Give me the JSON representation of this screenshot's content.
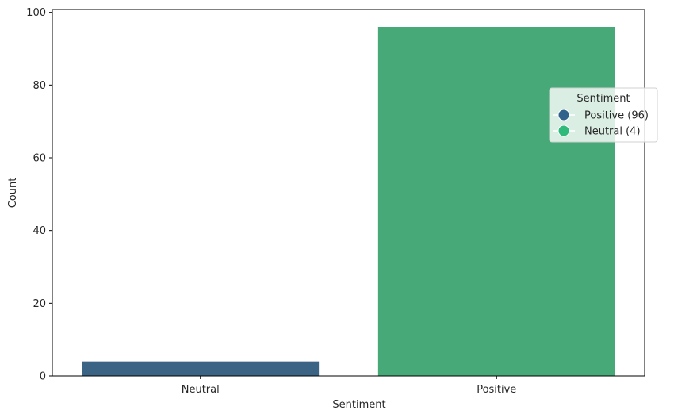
{
  "chart_data": {
    "type": "bar",
    "title": "",
    "xlabel": "Sentiment",
    "ylabel": "Count",
    "categories": [
      "Neutral",
      "Positive"
    ],
    "values": [
      4,
      96
    ],
    "bar_colors": [
      "#3b6384",
      "#47a878"
    ],
    "ylim": [
      0,
      100.8
    ],
    "yticks": [
      0,
      20,
      40,
      60,
      80,
      100
    ],
    "grid": false,
    "legend": {
      "title": "Sentiment",
      "placement": "center-right",
      "entries": [
        {
          "label": "Positive (96)",
          "color": "#31628c"
        },
        {
          "label": "Neutral (4)",
          "color": "#2fba79"
        }
      ]
    }
  }
}
